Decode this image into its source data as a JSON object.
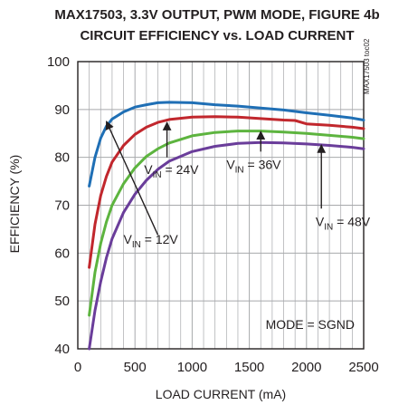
{
  "chart_data": {
    "type": "line",
    "title": "MAX17503, 3.3V OUTPUT, PWM MODE, FIGURE 4b",
    "subtitle": "CIRCUIT EFFICIENCY vs. LOAD CURRENT",
    "xlabel": "LOAD CURRENT (mA)",
    "ylabel": "EFFICIENCY (%)",
    "xlim": [
      0,
      2500
    ],
    "ylim": [
      40,
      100
    ],
    "xticks": [
      "0",
      "500",
      "1000",
      "1500",
      "2000",
      "2500"
    ],
    "yticks": [
      "40",
      "50",
      "60",
      "70",
      "80",
      "90",
      "100"
    ],
    "grid": true,
    "part_code": "MAX17503 toc02",
    "mode_label": "MODE = SGND",
    "series": [
      {
        "name": "12V",
        "color": "#1f6fb5",
        "points": [
          [
            100,
            74
          ],
          [
            150,
            80
          ],
          [
            200,
            84
          ],
          [
            250,
            86.5
          ],
          [
            300,
            88
          ],
          [
            400,
            89.5
          ],
          [
            500,
            90.5
          ],
          [
            600,
            91
          ],
          [
            700,
            91.4
          ],
          [
            800,
            91.5
          ],
          [
            1000,
            91.4
          ],
          [
            1200,
            91
          ],
          [
            1400,
            90.7
          ],
          [
            1600,
            90.3
          ],
          [
            1800,
            89.9
          ],
          [
            2000,
            89.3
          ],
          [
            2200,
            88.8
          ],
          [
            2400,
            88.2
          ],
          [
            2500,
            87.8
          ]
        ]
      },
      {
        "name": "24V",
        "color": "#c1272d",
        "points": [
          [
            100,
            57
          ],
          [
            150,
            66
          ],
          [
            200,
            72
          ],
          [
            250,
            76
          ],
          [
            300,
            79
          ],
          [
            400,
            82.5
          ],
          [
            500,
            84.8
          ],
          [
            600,
            86.3
          ],
          [
            700,
            87.3
          ],
          [
            800,
            87.9
          ],
          [
            1000,
            88.4
          ],
          [
            1200,
            88.5
          ],
          [
            1400,
            88.4
          ],
          [
            1600,
            88.1
          ],
          [
            1800,
            87.8
          ],
          [
            1900,
            87.7
          ],
          [
            2000,
            87.0
          ],
          [
            2200,
            86.7
          ],
          [
            2400,
            86.3
          ],
          [
            2500,
            86.0
          ]
        ]
      },
      {
        "name": "36V",
        "color": "#5db43f",
        "points": [
          [
            100,
            47
          ],
          [
            150,
            56
          ],
          [
            200,
            62
          ],
          [
            250,
            66.5
          ],
          [
            300,
            70
          ],
          [
            400,
            74.5
          ],
          [
            500,
            77.8
          ],
          [
            600,
            80.2
          ],
          [
            700,
            81.8
          ],
          [
            800,
            83
          ],
          [
            1000,
            84.5
          ],
          [
            1200,
            85.2
          ],
          [
            1400,
            85.5
          ],
          [
            1600,
            85.5
          ],
          [
            1800,
            85.3
          ],
          [
            2000,
            85
          ],
          [
            2200,
            84.6
          ],
          [
            2400,
            84.2
          ],
          [
            2500,
            83.9
          ]
        ]
      },
      {
        "name": "48V",
        "color": "#6a3d9a",
        "points": [
          [
            100,
            40
          ],
          [
            150,
            48
          ],
          [
            200,
            54
          ],
          [
            250,
            59
          ],
          [
            300,
            63
          ],
          [
            400,
            68.5
          ],
          [
            500,
            72.3
          ],
          [
            600,
            75.2
          ],
          [
            700,
            77.5
          ],
          [
            800,
            79.2
          ],
          [
            1000,
            81.2
          ],
          [
            1200,
            82.3
          ],
          [
            1400,
            82.9
          ],
          [
            1600,
            83.1
          ],
          [
            1800,
            83
          ],
          [
            2000,
            82.8
          ],
          [
            2200,
            82.5
          ],
          [
            2400,
            82.1
          ],
          [
            2500,
            81.8
          ]
        ]
      }
    ],
    "annotations": [
      {
        "series": "12V",
        "label_main": "V",
        "label_sub": "IN",
        "label_tail": " = 12V",
        "text_x": 400,
        "text_y": 62,
        "arrow_from": [
          700,
          63.8
        ],
        "arrow_to": [
          250,
          87.5
        ]
      },
      {
        "series": "24V",
        "label_main": "V",
        "label_sub": "IN",
        "label_tail": " = 24V",
        "text_x": 580,
        "text_y": 76.5,
        "arrow_from": [
          780,
          80
        ],
        "arrow_to": [
          780,
          87.3
        ]
      },
      {
        "series": "36V",
        "label_main": "V",
        "label_sub": "IN",
        "label_tail": " = 36V",
        "text_x": 1300,
        "text_y": 77.6,
        "arrow_from": [
          1600,
          81.2
        ],
        "arrow_to": [
          1600,
          85.4
        ]
      },
      {
        "series": "48V",
        "label_main": "V",
        "label_sub": "IN",
        "label_tail": " = 48V",
        "text_x": 2080,
        "text_y": 65.6,
        "arrow_from": [
          2130,
          69.3
        ],
        "arrow_to": [
          2130,
          82.6
        ]
      }
    ]
  }
}
